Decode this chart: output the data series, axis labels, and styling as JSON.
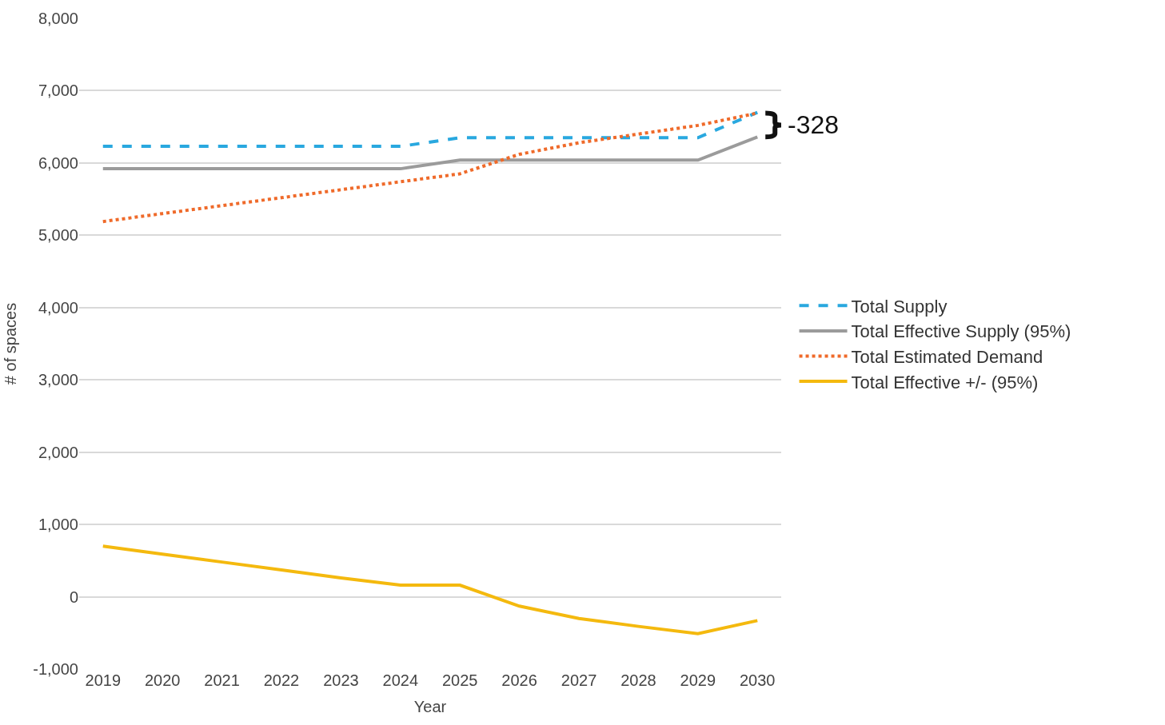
{
  "chart_data": {
    "type": "line",
    "categories": [
      "2019",
      "2020",
      "2021",
      "2022",
      "2023",
      "2024",
      "2025",
      "2026",
      "2027",
      "2028",
      "2029",
      "2030"
    ],
    "series": [
      {
        "name": "Total Supply",
        "color": "#29a8df",
        "line_style": "dashed",
        "values": [
          6230,
          6230,
          6230,
          6230,
          6230,
          6230,
          6350,
          6350,
          6350,
          6350,
          6350,
          6700
        ]
      },
      {
        "name": "Total Effective Supply (95%)",
        "color": "#9b9b9b",
        "line_style": "solid",
        "values": [
          5920,
          5920,
          5920,
          5920,
          5920,
          5920,
          6040,
          6040,
          6040,
          6040,
          6040,
          6360
        ]
      },
      {
        "name": "Total Estimated Demand",
        "color": "#ef6a2a",
        "line_style": "dotted",
        "values": [
          5190,
          5300,
          5410,
          5520,
          5630,
          5740,
          5850,
          6120,
          6280,
          6400,
          6520,
          6690
        ]
      },
      {
        "name": "Total Effective +/- (95%)",
        "color": "#f4b90e",
        "line_style": "solid",
        "values": [
          700,
          590,
          480,
          370,
          260,
          160,
          160,
          -130,
          -300,
          -410,
          -510,
          -330
        ]
      }
    ],
    "xlabel": "Year",
    "ylabel": "# of spaces",
    "ylim": [
      -1000,
      8000
    ],
    "yticks": [
      {
        "value": -1000,
        "label": "-1,000"
      },
      0,
      {
        "value": 1000,
        "label": "1,000"
      },
      {
        "value": 2000,
        "label": "2,000"
      },
      {
        "value": 3000,
        "label": "3,000"
      },
      {
        "value": 4000,
        "label": "4,000"
      },
      {
        "value": 5000,
        "label": "5,000"
      },
      {
        "value": 6000,
        "label": "6,000"
      },
      {
        "value": 7000,
        "label": "7,000"
      },
      {
        "value": 8000,
        "label": "8,000"
      }
    ],
    "grid": "y",
    "legend": "right",
    "marker": "none",
    "annotations": [
      "-328"
    ]
  }
}
